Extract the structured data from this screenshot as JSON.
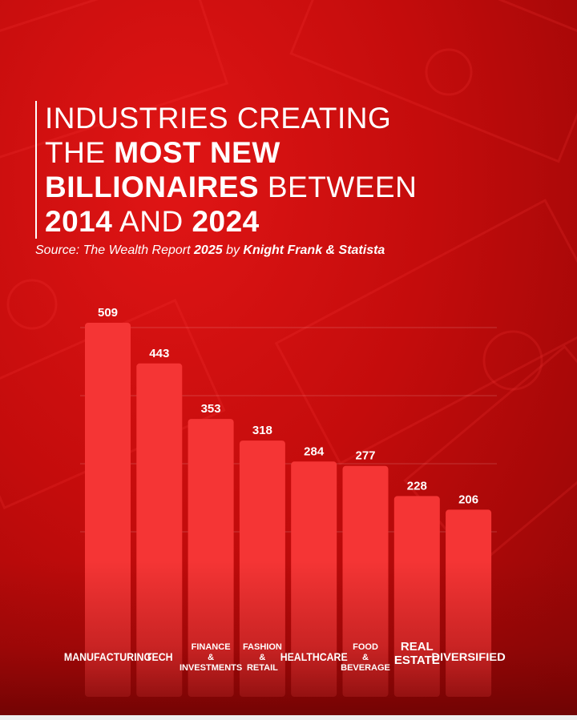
{
  "title": {
    "line1": "INDUSTRIES CREATING",
    "line2_a": "THE ",
    "line2_b": "MOST NEW",
    "line3_a": "BILLIONAIRES",
    "line3_b": " BETWEEN",
    "line4_a": "2014",
    "line4_b": " AND ",
    "line4_c": "2024"
  },
  "source": {
    "prefix": "Source: The Wealth Report ",
    "year": "2025",
    "by": " by ",
    "publishers": "Knight Frank & Statista"
  },
  "colors": {
    "bar": "#f53535",
    "background": "#c40c0c",
    "text": "#ffffff"
  },
  "chart_data": {
    "type": "bar",
    "categories": [
      [
        "MANUFACTURING"
      ],
      [
        "TECH"
      ],
      [
        "FINANCE",
        "&",
        "INVESTMENTS"
      ],
      [
        "FASHION",
        "&",
        "RETAIL"
      ],
      [
        "HEALTHCARE"
      ],
      [
        "FOOD",
        "&",
        "BEVERAGE"
      ],
      [
        "REAL",
        "ESTATE"
      ],
      [
        "DIVERSIFIED"
      ]
    ],
    "values": [
      509,
      443,
      353,
      318,
      284,
      277,
      228,
      206
    ],
    "ylim": [
      0,
      509
    ],
    "grid": true,
    "data_labels": true
  }
}
